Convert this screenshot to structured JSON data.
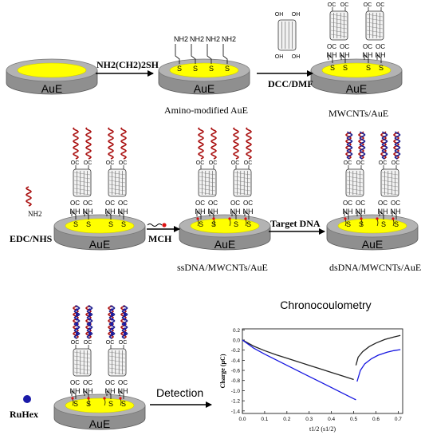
{
  "electrode": {
    "label": "AuE"
  },
  "linker": {
    "amine": "NH",
    "amine2": "NH",
    "thiol": "S"
  },
  "carbonyl": {
    "c": "C",
    "o": "O",
    "oh": "OH",
    "cooh_o": "O"
  },
  "steps": {
    "step1_reagent": "NH2(CH2)2SH",
    "step1_product": "Amino-modified AuE",
    "step2_reagent": "DCC/DMF",
    "step2_product": "MWCNTs/AuE",
    "step3_reagent": "EDC/NHS",
    "step3_input_label": "NH2",
    "step4_reagent": "MCH",
    "step4_product": "ssDNA/MWCNTs/AuE",
    "step5_reagent": "Target DNA",
    "step5_product": "dsDNA/MWCNTs/AuE",
    "step6_reagent": "RuHex",
    "step6_action": "Detection"
  },
  "colors": {
    "gold": "#ffff00",
    "disk_gray": "#b3b3b3",
    "ssdna": "#aa1111",
    "dsdna_red": "#aa1111",
    "dsdna_blue": "#1b1b8c",
    "ruhex": "#1a1aa8",
    "mch_dot": "#dd1111",
    "curve_black": "#222222",
    "curve_blue": "#1515e0"
  },
  "chart_data": {
    "type": "line",
    "title": "Chronocoulometry",
    "xlabel": "t1/2 (s1/2)",
    "ylabel": "Charge (μC)",
    "xlim": [
      0.0,
      0.72
    ],
    "ylim": [
      -1.45,
      0.22
    ],
    "x_ticks": [
      "0.0",
      "0.1",
      "0.2",
      "0.3",
      "0.4",
      "0.5",
      "0.6",
      "0.7"
    ],
    "y_ticks": [
      "0.2",
      "0.0",
      "-0.2",
      "-0.4",
      "-0.6",
      "-0.8",
      "-1.0",
      "-1.2",
      "-1.4"
    ],
    "series": [
      {
        "color": "#222222",
        "segments": [
          [
            [
              0.0,
              0.0
            ],
            [
              0.05,
              -0.12
            ],
            [
              0.1,
              -0.21
            ],
            [
              0.15,
              -0.29
            ],
            [
              0.2,
              -0.36
            ],
            [
              0.25,
              -0.43
            ],
            [
              0.3,
              -0.5
            ],
            [
              0.35,
              -0.57
            ],
            [
              0.4,
              -0.64
            ],
            [
              0.45,
              -0.71
            ],
            [
              0.5,
              -0.78
            ]
          ],
          [
            [
              0.51,
              -0.5
            ],
            [
              0.52,
              -0.34
            ],
            [
              0.54,
              -0.23
            ],
            [
              0.57,
              -0.13
            ],
            [
              0.6,
              -0.06
            ],
            [
              0.64,
              0.01
            ],
            [
              0.68,
              0.06
            ],
            [
              0.71,
              0.09
            ]
          ]
        ]
      },
      {
        "color": "#1515e0",
        "segments": [
          [
            [
              0.0,
              0.0
            ],
            [
              0.05,
              -0.16
            ],
            [
              0.1,
              -0.28
            ],
            [
              0.15,
              -0.39
            ],
            [
              0.2,
              -0.5
            ],
            [
              0.25,
              -0.61
            ],
            [
              0.3,
              -0.72
            ],
            [
              0.35,
              -0.83
            ],
            [
              0.4,
              -0.94
            ],
            [
              0.45,
              -1.05
            ],
            [
              0.5,
              -1.16
            ],
            [
              0.51,
              -1.18
            ]
          ],
          [
            [
              0.515,
              -0.82
            ],
            [
              0.53,
              -0.6
            ],
            [
              0.55,
              -0.47
            ],
            [
              0.58,
              -0.37
            ],
            [
              0.61,
              -0.3
            ],
            [
              0.65,
              -0.24
            ],
            [
              0.68,
              -0.21
            ],
            [
              0.71,
              -0.19
            ]
          ]
        ]
      }
    ]
  }
}
